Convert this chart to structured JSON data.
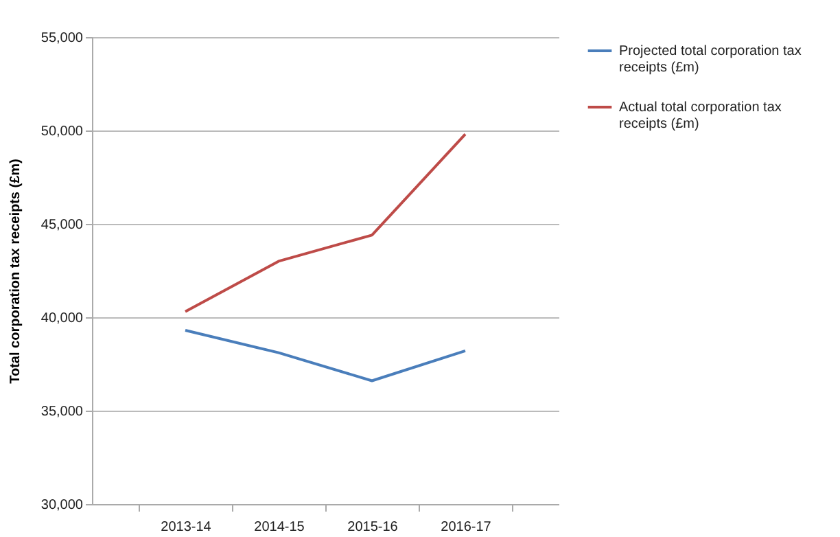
{
  "chart_data": {
    "type": "line",
    "ylabel": "Total corporation tax receipts (£m)",
    "categories": [
      "2013-14",
      "2014-15",
      "2015-16",
      "2016-17"
    ],
    "series": [
      {
        "name": "Projected total corporation tax receipts (£m)",
        "color": "#4a7ebb",
        "values": [
          39300,
          38100,
          36600,
          38200
        ]
      },
      {
        "name": "Actual total corporation tax receipts (£m)",
        "color": "#be4b48",
        "values": [
          40300,
          43000,
          44400,
          49800
        ]
      }
    ],
    "ylim": [
      30000,
      55000
    ],
    "yticks": [
      {
        "value": 30000,
        "label": "30,000"
      },
      {
        "value": 35000,
        "label": "35,000"
      },
      {
        "value": 40000,
        "label": "40,000"
      },
      {
        "value": 45000,
        "label": "45,000"
      },
      {
        "value": 50000,
        "label": "50,000"
      },
      {
        "value": 55000,
        "label": "55,000"
      }
    ],
    "grid": "y",
    "legend": "right",
    "marker": "none",
    "line_style": "solid"
  }
}
